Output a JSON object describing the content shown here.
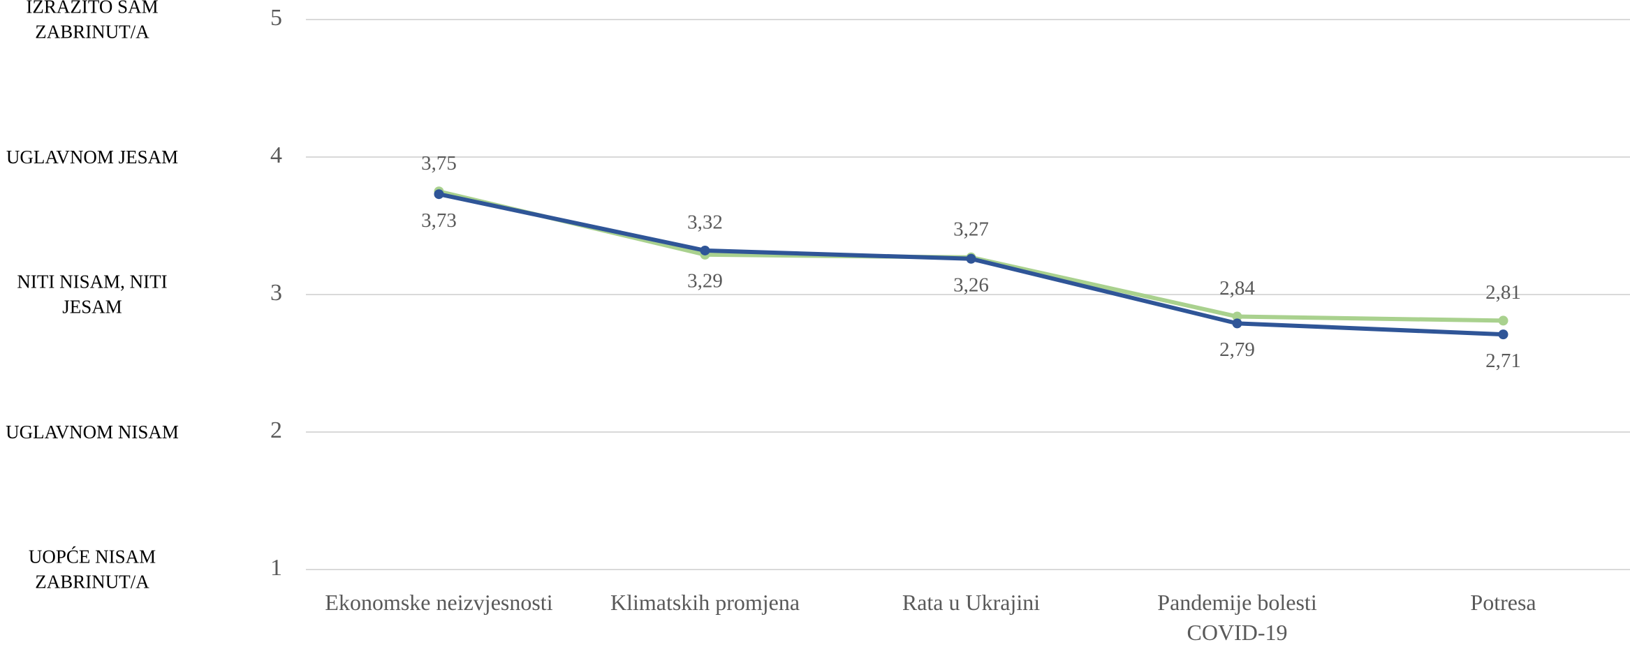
{
  "chart_data": {
    "type": "line",
    "categories": [
      "Ekonomske neizvjesnosti",
      "Klimatskih promjena",
      "Rata u Ukrajini",
      "Pandemije bolesti COVID-19",
      "Potresa"
    ],
    "series": [
      {
        "color": "#a9d18e",
        "values": [
          3.75,
          3.29,
          3.27,
          2.84,
          2.81
        ],
        "value_labels": [
          "3,75",
          "3,29",
          "3,27",
          "2,84",
          "2,81"
        ]
      },
      {
        "color": "#2f5597",
        "values": [
          3.73,
          3.32,
          3.26,
          2.79,
          2.71
        ],
        "value_labels": [
          "3,73",
          "3,32",
          "3,26",
          "2,79",
          "2,71"
        ]
      }
    ],
    "ylim": [
      1,
      5
    ],
    "yticks": [
      1,
      2,
      3,
      4,
      5
    ],
    "ytick_descriptions": [
      "UOPĆE NISAM ZABRINUT/A",
      "UGLAVNOM NISAM",
      "NITI NISAM, NITI JESAM",
      "UGLAVNOM JESAM",
      "IZRAZITO SAM ZABRINUT/A"
    ],
    "grid": true
  }
}
